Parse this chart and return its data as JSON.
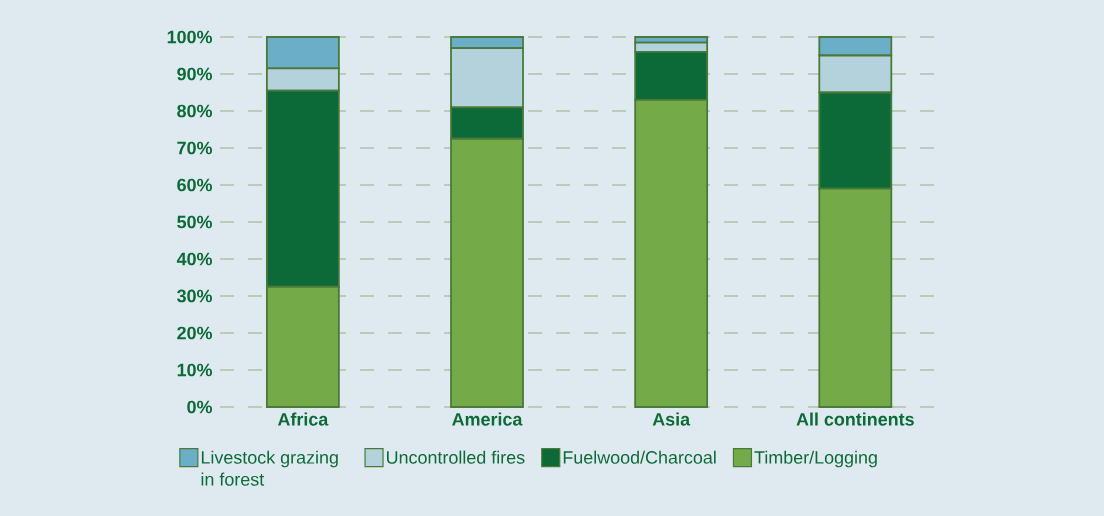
{
  "chart_data": {
    "type": "bar",
    "stacked": true,
    "categories": [
      "Africa",
      "America",
      "Asia",
      "All continents"
    ],
    "series": [
      {
        "name": "Timber/Logging",
        "color": "#74aa48",
        "values": [
          32.5,
          72.5,
          83,
          59
        ]
      },
      {
        "name": "Fuelwood/Charcoal",
        "color": "#0c6a38",
        "values": [
          53,
          8.5,
          13,
          26
        ]
      },
      {
        "name": "Uncontrolled fires",
        "color": "#b4d2dc",
        "values": [
          6,
          16,
          2.5,
          10
        ]
      },
      {
        "name": "Livestock grazing in forest",
        "color": "#6aaec8",
        "values": [
          8.5,
          3,
          1.5,
          5
        ]
      }
    ],
    "ylim": [
      0,
      100
    ],
    "yticks": [
      {
        "value": 0,
        "label": "0%"
      },
      {
        "value": 10,
        "label": "10%"
      },
      {
        "value": 20,
        "label": "20%"
      },
      {
        "value": 30,
        "label": "30%"
      },
      {
        "value": 40,
        "label": "40%"
      },
      {
        "value": 50,
        "label": "50%"
      },
      {
        "value": 60,
        "label": "60%"
      },
      {
        "value": 70,
        "label": "70%"
      },
      {
        "value": 80,
        "label": "80%"
      },
      {
        "value": 90,
        "label": "90%"
      },
      {
        "value": 100,
        "label": "100%"
      }
    ],
    "grid": "y",
    "legend": "bottom"
  }
}
